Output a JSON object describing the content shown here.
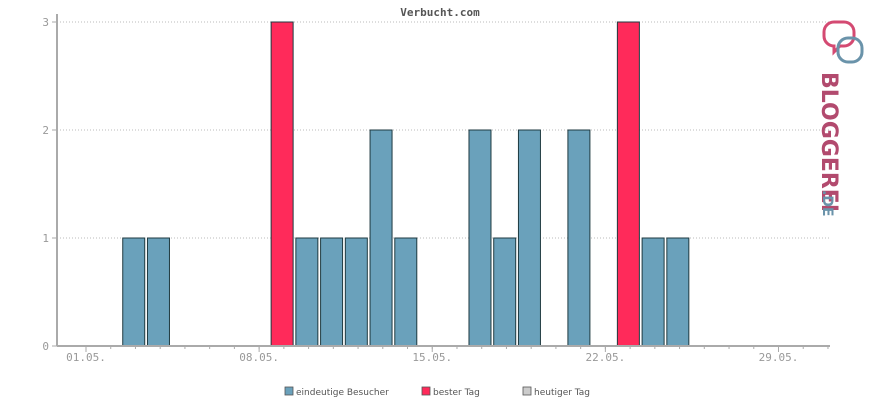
{
  "chart_data": {
    "type": "bar",
    "title": "Verbucht.com",
    "xlabel": "",
    "ylabel": "",
    "ylim": [
      0,
      3
    ],
    "yticks": [
      0,
      1,
      2,
      3
    ],
    "xtick_labels": [
      "01.05.",
      "08.05.",
      "15.05.",
      "22.05.",
      "29.05."
    ],
    "xtick_days": [
      1,
      8,
      15,
      22,
      29
    ],
    "days": [
      1,
      2,
      3,
      4,
      5,
      6,
      7,
      8,
      9,
      10,
      11,
      12,
      13,
      14,
      15,
      16,
      17,
      18,
      19,
      20,
      21,
      22,
      23,
      24,
      25,
      26,
      27,
      28,
      29,
      30,
      31
    ],
    "values": [
      0,
      1,
      1,
      0,
      0,
      0,
      0,
      3,
      1,
      1,
      1,
      2,
      1,
      0,
      0,
      2,
      1,
      2,
      0,
      2,
      0,
      3,
      1,
      1,
      0,
      0,
      0,
      0,
      0,
      0,
      0
    ],
    "series": [
      {
        "name": "eindeutige Besucher",
        "color": "#6aa1bb"
      },
      {
        "name": "bester Tag",
        "color": "#ff2a5a"
      },
      {
        "name": "heutiger Tag",
        "color": "#cccccc"
      }
    ],
    "best_days": [
      8,
      22
    ],
    "grid": true,
    "legend_position": "bottom-center"
  },
  "logo": {
    "text_main": "BLOGGEREI",
    "text_suffix": ".DE",
    "color_main": "#b24a6e",
    "color_suffix": "#6a93aa"
  }
}
